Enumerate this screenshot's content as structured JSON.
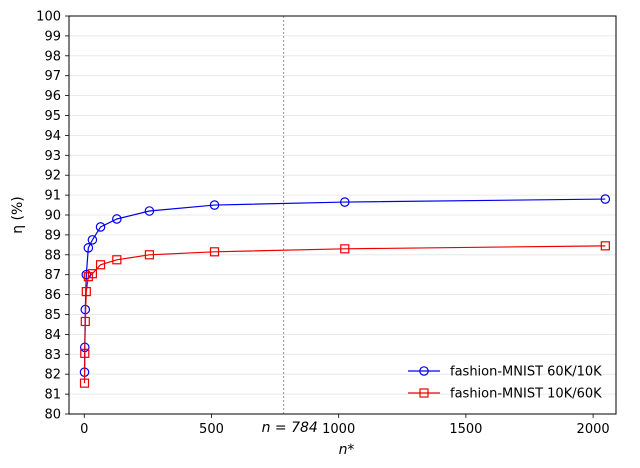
{
  "chart_data": {
    "type": "line",
    "xlabel": "n*",
    "ylabel": "η (%)",
    "xlim": [
      -60,
      2090
    ],
    "ylim": [
      80,
      100
    ],
    "x_ticks": [
      0,
      500,
      1000,
      1500,
      2000
    ],
    "y_ticks": [
      80,
      81,
      82,
      83,
      84,
      85,
      86,
      87,
      88,
      89,
      90,
      91,
      92,
      93,
      94,
      95,
      96,
      97,
      98,
      99,
      100
    ],
    "grid": "horizontal",
    "legend_position": "lower-right",
    "annotation": {
      "x": 784,
      "label": "n = 784",
      "style": "dashed vertical line"
    },
    "series": [
      {
        "name": "fashion-MNIST 60K/10K",
        "color": "#0000ee",
        "marker": "circle",
        "x": [
          1,
          2,
          4,
          8,
          16,
          32,
          64,
          128,
          256,
          512,
          1024,
          2048
        ],
        "y": [
          82.1,
          83.35,
          85.25,
          87.0,
          88.35,
          88.75,
          89.4,
          89.8,
          90.2,
          90.5,
          90.65,
          90.8
        ]
      },
      {
        "name": "fashion-MNIST 10K/60K",
        "color": "#ee0000",
        "marker": "square",
        "x": [
          1,
          2,
          4,
          8,
          16,
          32,
          64,
          128,
          256,
          512,
          1024,
          2048
        ],
        "y": [
          81.55,
          83.05,
          84.65,
          86.15,
          86.9,
          87.05,
          87.5,
          87.75,
          88.0,
          88.15,
          88.3,
          88.45
        ]
      }
    ]
  }
}
